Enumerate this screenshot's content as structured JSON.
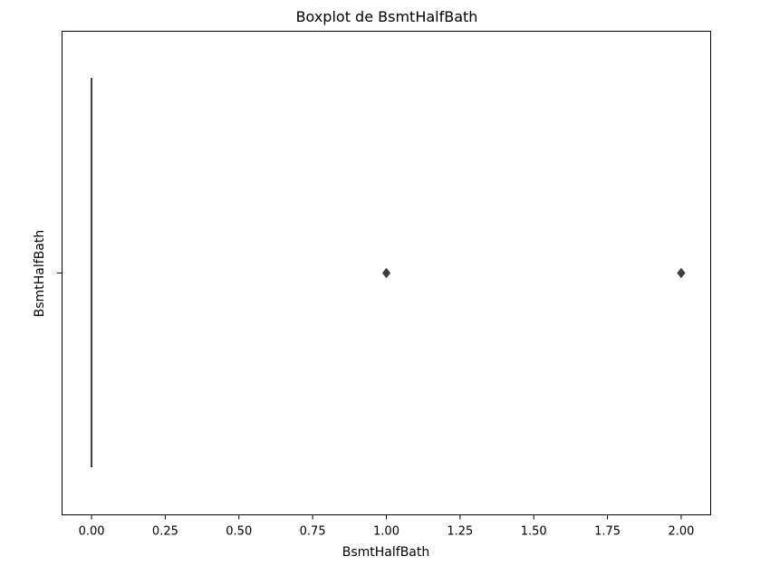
{
  "chart_data": {
    "type": "boxplot",
    "title": "Boxplot de BsmtHalfBath",
    "xlabel": "BsmtHalfBath",
    "ylabel": "BsmtHalfBath",
    "xlim": [
      -0.1,
      2.1
    ],
    "xticks": [
      0.0,
      0.25,
      0.5,
      0.75,
      1.0,
      1.25,
      1.5,
      1.75,
      2.0
    ],
    "xtick_labels": [
      "0.00",
      "0.25",
      "0.50",
      "0.75",
      "1.00",
      "1.25",
      "1.50",
      "1.75",
      "2.00"
    ],
    "box": {
      "min": 0,
      "q1": 0,
      "median": 0,
      "q3": 0,
      "max": 0
    },
    "outliers": [
      1.0,
      2.0
    ],
    "grid": false,
    "colors": {
      "box": "#3f3f3f",
      "axes": "#000000"
    }
  }
}
